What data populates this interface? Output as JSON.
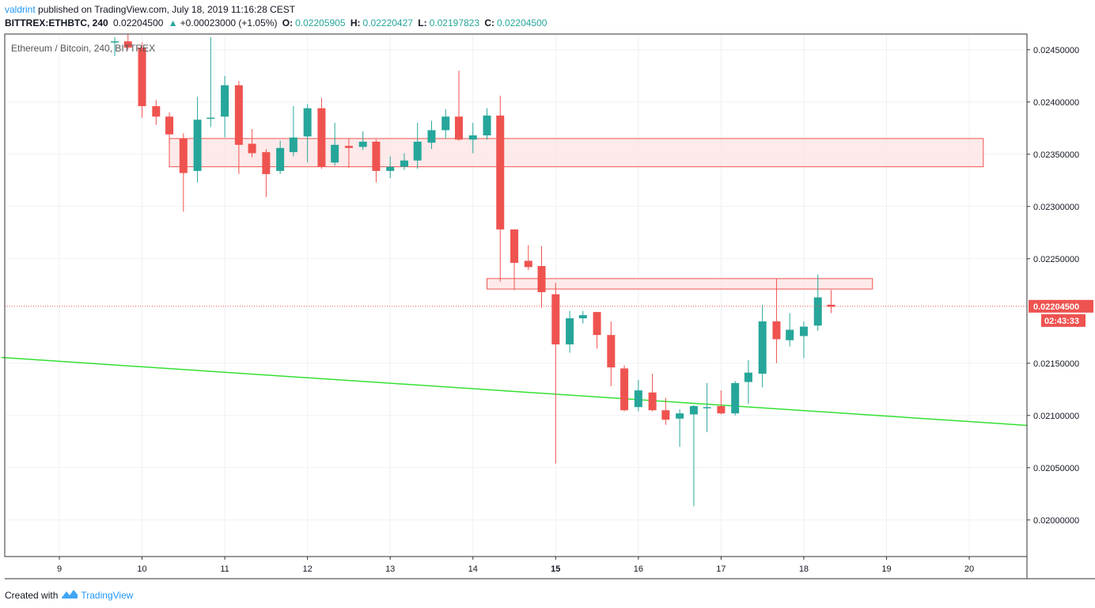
{
  "header": {
    "author": "valdrint",
    "published_text": "published on TradingView.com, July 18, 2019 11:16:28 CEST",
    "symbol": "BITTREX:ETHBTC, 240",
    "last": "0.02204500",
    "change_arrow": "▲",
    "change": "+0.00023000 (+1.05%)",
    "o_label": "O:",
    "o_value": "0.02205905",
    "h_label": "H:",
    "h_value": "0.02220427",
    "l_label": "L:",
    "l_value": "0.02197823",
    "c_label": "C:",
    "c_value": "0.02204500"
  },
  "footer": {
    "created_with": "Created with",
    "brand": "TradingView"
  },
  "colors": {
    "up": "#26a69a",
    "down": "#ef5350",
    "zone_fill": "#fde3e3",
    "zone_stroke": "#ef5350",
    "trendline": "#33e033",
    "grid": "#edf1f5"
  },
  "chart_data": {
    "type": "candlestick",
    "title": "Ethereum / Bitcoin, 240, BITTREX",
    "ylim": [
      0.01965,
      0.02465
    ],
    "xlim": [
      8.3,
      20.7
    ],
    "y_ticks": [
      0.0245,
      0.024,
      0.0235,
      0.023,
      0.0225,
      0.0215,
      0.021,
      0.0205,
      0.02
    ],
    "y_tick_labels": [
      "0.02450000",
      "0.02400000",
      "0.02350000",
      "0.02300000",
      "0.02250000",
      "0.02150000",
      "0.02100000",
      "0.02050000",
      "0.02000000"
    ],
    "x_ticks": [
      9,
      10,
      11,
      12,
      13,
      14,
      15,
      16,
      17,
      18,
      19,
      20
    ],
    "x_tick_labels": [
      "9",
      "10",
      "11",
      "12",
      "13",
      "14",
      "15",
      "16",
      "17",
      "18",
      "19",
      "20"
    ],
    "bold_x_labels": [
      "15"
    ],
    "last_price_label": "0.02204500",
    "countdown_label": "02:43:33",
    "last_price": 0.022045,
    "candles": [
      {
        "x": 9.67,
        "o": 0.02458,
        "h": 0.02462,
        "l": 0.02444,
        "c": 0.02458
      },
      {
        "x": 9.83,
        "o": 0.02458,
        "h": 0.02465,
        "l": 0.0245,
        "c": 0.02452
      },
      {
        "x": 10.0,
        "o": 0.02452,
        "h": 0.02457,
        "l": 0.02385,
        "c": 0.02396
      },
      {
        "x": 10.17,
        "o": 0.02396,
        "h": 0.02402,
        "l": 0.02378,
        "c": 0.02386
      },
      {
        "x": 10.33,
        "o": 0.02386,
        "h": 0.0239,
        "l": 0.0236,
        "c": 0.02369
      },
      {
        "x": 10.5,
        "o": 0.02365,
        "h": 0.0237,
        "l": 0.02295,
        "c": 0.02332
      },
      {
        "x": 10.67,
        "o": 0.02334,
        "h": 0.02405,
        "l": 0.02323,
        "c": 0.02383
      },
      {
        "x": 10.83,
        "o": 0.02384,
        "h": 0.02462,
        "l": 0.02376,
        "c": 0.02385
      },
      {
        "x": 11.0,
        "o": 0.02386,
        "h": 0.02425,
        "l": 0.02366,
        "c": 0.02416
      },
      {
        "x": 11.17,
        "o": 0.02416,
        "h": 0.0242,
        "l": 0.02331,
        "c": 0.02359
      },
      {
        "x": 11.33,
        "o": 0.0236,
        "h": 0.02374,
        "l": 0.02347,
        "c": 0.02351
      },
      {
        "x": 11.5,
        "o": 0.02352,
        "h": 0.02355,
        "l": 0.02309,
        "c": 0.02331
      },
      {
        "x": 11.67,
        "o": 0.02334,
        "h": 0.02363,
        "l": 0.02331,
        "c": 0.02356
      },
      {
        "x": 11.83,
        "o": 0.02352,
        "h": 0.02396,
        "l": 0.02348,
        "c": 0.02366
      },
      {
        "x": 12.0,
        "o": 0.02367,
        "h": 0.02398,
        "l": 0.02342,
        "c": 0.02394
      },
      {
        "x": 12.17,
        "o": 0.02394,
        "h": 0.02404,
        "l": 0.02336,
        "c": 0.02338
      },
      {
        "x": 12.33,
        "o": 0.02342,
        "h": 0.0238,
        "l": 0.02339,
        "c": 0.02359
      },
      {
        "x": 12.5,
        "o": 0.02358,
        "h": 0.02365,
        "l": 0.02337,
        "c": 0.02356
      },
      {
        "x": 12.67,
        "o": 0.02357,
        "h": 0.02372,
        "l": 0.02354,
        "c": 0.02362
      },
      {
        "x": 12.83,
        "o": 0.02362,
        "h": 0.02364,
        "l": 0.02323,
        "c": 0.02334
      },
      {
        "x": 13.0,
        "o": 0.02334,
        "h": 0.02348,
        "l": 0.02327,
        "c": 0.02338
      },
      {
        "x": 13.17,
        "o": 0.02338,
        "h": 0.02351,
        "l": 0.02335,
        "c": 0.02344
      },
      {
        "x": 13.33,
        "o": 0.02344,
        "h": 0.0238,
        "l": 0.02336,
        "c": 0.02362
      },
      {
        "x": 13.5,
        "o": 0.02361,
        "h": 0.02382,
        "l": 0.02355,
        "c": 0.02373
      },
      {
        "x": 13.67,
        "o": 0.02373,
        "h": 0.02393,
        "l": 0.02365,
        "c": 0.02386
      },
      {
        "x": 13.83,
        "o": 0.02386,
        "h": 0.0243,
        "l": 0.02363,
        "c": 0.02364
      },
      {
        "x": 14.0,
        "o": 0.02364,
        "h": 0.0238,
        "l": 0.02351,
        "c": 0.02368
      },
      {
        "x": 14.17,
        "o": 0.02368,
        "h": 0.02394,
        "l": 0.02364,
        "c": 0.02387
      },
      {
        "x": 14.33,
        "o": 0.02387,
        "h": 0.02406,
        "l": 0.02228,
        "c": 0.02278
      },
      {
        "x": 14.5,
        "o": 0.02278,
        "h": 0.02278,
        "l": 0.0222,
        "c": 0.02246
      },
      {
        "x": 14.67,
        "o": 0.02248,
        "h": 0.02263,
        "l": 0.02239,
        "c": 0.02242
      },
      {
        "x": 14.83,
        "o": 0.02243,
        "h": 0.02262,
        "l": 0.02203,
        "c": 0.02218
      },
      {
        "x": 15.0,
        "o": 0.02216,
        "h": 0.02227,
        "l": 0.02054,
        "c": 0.02168
      },
      {
        "x": 15.17,
        "o": 0.02168,
        "h": 0.022,
        "l": 0.0216,
        "c": 0.02193
      },
      {
        "x": 15.33,
        "o": 0.02193,
        "h": 0.022,
        "l": 0.02188,
        "c": 0.02196
      },
      {
        "x": 15.5,
        "o": 0.02199,
        "h": 0.02199,
        "l": 0.02164,
        "c": 0.02177
      },
      {
        "x": 15.67,
        "o": 0.02177,
        "h": 0.0219,
        "l": 0.02128,
        "c": 0.02146
      },
      {
        "x": 15.83,
        "o": 0.02145,
        "h": 0.02148,
        "l": 0.02104,
        "c": 0.02105
      },
      {
        "x": 16.0,
        "o": 0.02108,
        "h": 0.02134,
        "l": 0.02104,
        "c": 0.02124
      },
      {
        "x": 16.17,
        "o": 0.02122,
        "h": 0.0214,
        "l": 0.02104,
        "c": 0.02105
      },
      {
        "x": 16.33,
        "o": 0.02105,
        "h": 0.02117,
        "l": 0.02091,
        "c": 0.02096
      },
      {
        "x": 16.5,
        "o": 0.02097,
        "h": 0.02106,
        "l": 0.0207,
        "c": 0.02102
      },
      {
        "x": 16.67,
        "o": 0.02101,
        "h": 0.0211,
        "l": 0.02013,
        "c": 0.02109
      },
      {
        "x": 16.83,
        "o": 0.02108,
        "h": 0.02131,
        "l": 0.02084,
        "c": 0.02108
      },
      {
        "x": 17.0,
        "o": 0.02109,
        "h": 0.02124,
        "l": 0.02101,
        "c": 0.02102
      },
      {
        "x": 17.17,
        "o": 0.02102,
        "h": 0.02133,
        "l": 0.021,
        "c": 0.02131
      },
      {
        "x": 17.33,
        "o": 0.02132,
        "h": 0.02153,
        "l": 0.02111,
        "c": 0.02141
      },
      {
        "x": 17.5,
        "o": 0.0214,
        "h": 0.02206,
        "l": 0.02127,
        "c": 0.0219
      },
      {
        "x": 17.67,
        "o": 0.0219,
        "h": 0.02231,
        "l": 0.0215,
        "c": 0.02173
      },
      {
        "x": 17.83,
        "o": 0.02172,
        "h": 0.02198,
        "l": 0.02166,
        "c": 0.02182
      },
      {
        "x": 18.0,
        "o": 0.02176,
        "h": 0.0219,
        "l": 0.02155,
        "c": 0.02185
      },
      {
        "x": 18.17,
        "o": 0.02186,
        "h": 0.02235,
        "l": 0.02181,
        "c": 0.02213
      },
      {
        "x": 18.33,
        "o": 0.02206,
        "h": 0.0222,
        "l": 0.02198,
        "c": 0.02204
      }
    ],
    "zones": [
      {
        "x0": 10.33,
        "x1": 20.17,
        "y0": 0.02338,
        "y1": 0.02365
      },
      {
        "x0": 14.17,
        "x1": 18.83,
        "y0": 0.02221,
        "y1": 0.02231
      }
    ],
    "trendline": {
      "x0": 8.3,
      "y0": 0.021555,
      "x1": 20.7,
      "y1": 0.020905
    }
  }
}
